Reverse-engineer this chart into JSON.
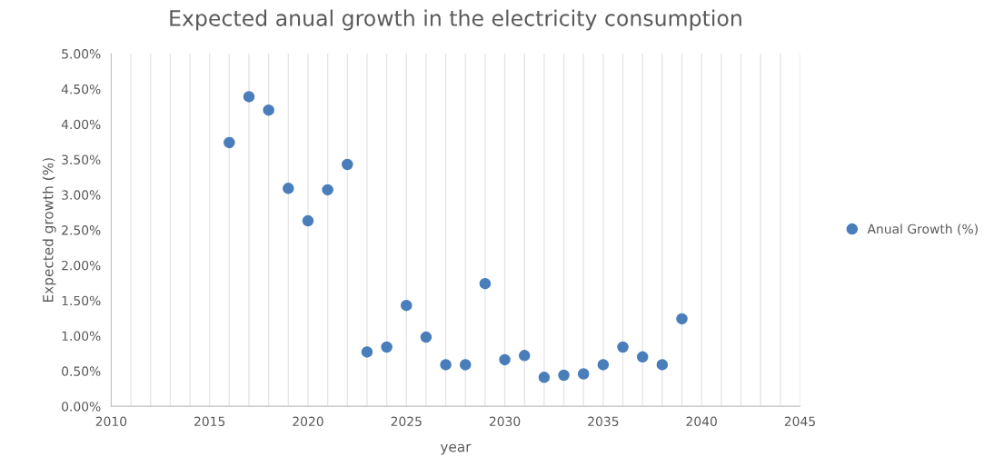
{
  "chart_data": {
    "type": "scatter",
    "title": "Expected anual growth in the electricity consumption",
    "xlabel": "year",
    "ylabel": "Expected growth (%)",
    "x": [
      2016,
      2017,
      2018,
      2019,
      2020,
      2021,
      2022,
      2023,
      2024,
      2025,
      2026,
      2027,
      2028,
      2029,
      2030,
      2031,
      2032,
      2033,
      2034,
      2035,
      2036,
      2037,
      2038,
      2039
    ],
    "series": [
      {
        "name": "Anual Growth (%)",
        "color": "#4a7ebb",
        "values": [
          3.74,
          4.39,
          4.2,
          3.09,
          2.63,
          3.07,
          3.43,
          0.77,
          0.84,
          1.43,
          0.98,
          0.59,
          0.59,
          1.74,
          0.66,
          0.72,
          0.41,
          0.44,
          0.46,
          0.59,
          0.84,
          0.7,
          0.59,
          1.24
        ]
      }
    ],
    "xlim": [
      2010,
      2045
    ],
    "xticks": [
      2010,
      {
        "value": 2011,
        "label": null
      },
      {
        "value": 2012,
        "label": null
      },
      {
        "value": 2013,
        "label": null
      },
      {
        "value": 2014,
        "label": null
      },
      2015,
      {
        "value": 2016,
        "label": null
      },
      {
        "value": 2017,
        "label": null
      },
      {
        "value": 2018,
        "label": null
      },
      {
        "value": 2019,
        "label": null
      },
      2020,
      {
        "value": 2021,
        "label": null
      },
      {
        "value": 2022,
        "label": null
      },
      {
        "value": 2023,
        "label": null
      },
      {
        "value": 2024,
        "label": null
      },
      2025,
      {
        "value": 2026,
        "label": null
      },
      {
        "value": 2027,
        "label": null
      },
      {
        "value": 2028,
        "label": null
      },
      {
        "value": 2029,
        "label": null
      },
      2030,
      {
        "value": 2031,
        "label": null
      },
      {
        "value": 2032,
        "label": null
      },
      {
        "value": 2033,
        "label": null
      },
      {
        "value": 2034,
        "label": null
      },
      2035,
      {
        "value": 2036,
        "label": null
      },
      {
        "value": 2037,
        "label": null
      },
      {
        "value": 2038,
        "label": null
      },
      {
        "value": 2039,
        "label": null
      },
      2040,
      {
        "value": 2041,
        "label": null
      },
      {
        "value": 2042,
        "label": null
      },
      {
        "value": 2043,
        "label": null
      },
      {
        "value": 2044,
        "label": null
      },
      2045
    ],
    "ylim": [
      0,
      5
    ],
    "yticks": [
      {
        "value": 0,
        "label": "0.00%"
      },
      {
        "value": 0.5,
        "label": "0.50%"
      },
      {
        "value": 1,
        "label": "1.00%"
      },
      {
        "value": 1.5,
        "label": "1.50%"
      },
      {
        "value": 2,
        "label": "2.00%"
      },
      {
        "value": 2.5,
        "label": "2.50%"
      },
      {
        "value": 3,
        "label": "3.00%"
      },
      {
        "value": 3.5,
        "label": "3.50%"
      },
      {
        "value": 4,
        "label": "4.00%"
      },
      {
        "value": 4.5,
        "label": "4.50%"
      },
      {
        "value": 5,
        "label": "5.00%"
      }
    ],
    "grid": "x",
    "legend": "right",
    "marker": "circle"
  }
}
